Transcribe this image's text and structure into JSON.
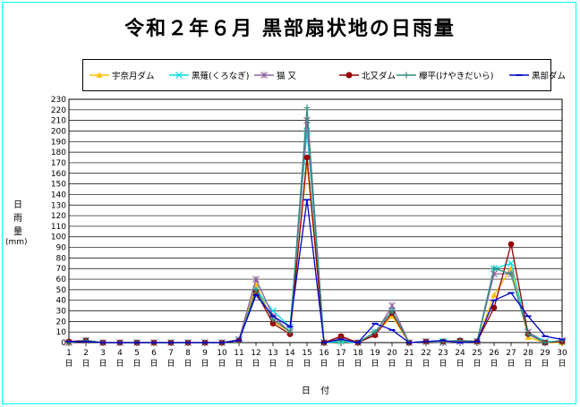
{
  "title": "令和２年６月 黒部扇状地の日雨量",
  "chart_data": {
    "type": "line",
    "ylabel_chars": [
      "日",
      "雨",
      "量"
    ],
    "yunit": "(mm)",
    "xlabel": "日 付",
    "ylim": [
      0,
      230
    ],
    "ystep": 10,
    "grid": true,
    "legend_position": "top",
    "categories": [
      "1",
      "2",
      "3",
      "4",
      "5",
      "6",
      "7",
      "8",
      "9",
      "10",
      "11",
      "12",
      "13",
      "14",
      "15",
      "16",
      "17",
      "18",
      "19",
      "20",
      "21",
      "22",
      "23",
      "24",
      "25",
      "26",
      "27",
      "28",
      "29",
      "30"
    ],
    "category_suffix": "日",
    "series": [
      {
        "name": "宇奈月ダム",
        "color": "#ffc000",
        "marker": "triangle",
        "values": [
          0,
          2,
          0,
          0,
          0,
          0,
          0,
          0,
          0,
          0,
          2,
          55,
          20,
          10,
          170,
          0,
          2,
          0,
          8,
          25,
          0,
          1,
          1,
          2,
          1,
          45,
          70,
          5,
          0,
          0
        ]
      },
      {
        "name": "黒薙(くろなぎ)",
        "color": "#00e0e0",
        "marker": "x",
        "values": [
          0,
          2,
          0,
          0,
          0,
          0,
          0,
          0,
          0,
          0,
          2,
          50,
          30,
          15,
          200,
          0,
          1,
          0,
          10,
          30,
          0,
          1,
          1,
          1,
          1,
          70,
          75,
          10,
          1,
          1
        ]
      },
      {
        "name": "猫 又",
        "color": "#9060a0",
        "marker": "star",
        "values": [
          0,
          2,
          0,
          0,
          0,
          0,
          0,
          0,
          0,
          0,
          3,
          60,
          25,
          10,
          210,
          0,
          5,
          0,
          8,
          35,
          0,
          1,
          0,
          1,
          1,
          65,
          65,
          10,
          0,
          2
        ]
      },
      {
        "name": "北又ダム",
        "color": "#990000",
        "marker": "circle",
        "values": [
          1,
          2,
          0,
          0,
          0,
          0,
          0,
          0,
          0,
          0,
          2,
          48,
          18,
          8,
          175,
          0,
          6,
          0,
          7,
          28,
          0,
          1,
          1,
          2,
          1,
          33,
          93,
          8,
          0,
          1
        ]
      },
      {
        "name": "欅平(けやきだいら)",
        "color": "#309080",
        "marker": "plus",
        "values": [
          0,
          2,
          0,
          0,
          0,
          0,
          0,
          0,
          0,
          0,
          2,
          50,
          22,
          10,
          222,
          0,
          3,
          0,
          10,
          30,
          0,
          1,
          1,
          2,
          1,
          70,
          65,
          8,
          0,
          2
        ]
      },
      {
        "name": "黒部ダム",
        "color": "#0000cc",
        "marker": "dash",
        "values": [
          1,
          1,
          0,
          0,
          0,
          0,
          0,
          0,
          0,
          0,
          2,
          45,
          25,
          15,
          135,
          0,
          3,
          0,
          18,
          12,
          0,
          1,
          2,
          0,
          1,
          40,
          47,
          25,
          6,
          3
        ]
      }
    ]
  }
}
